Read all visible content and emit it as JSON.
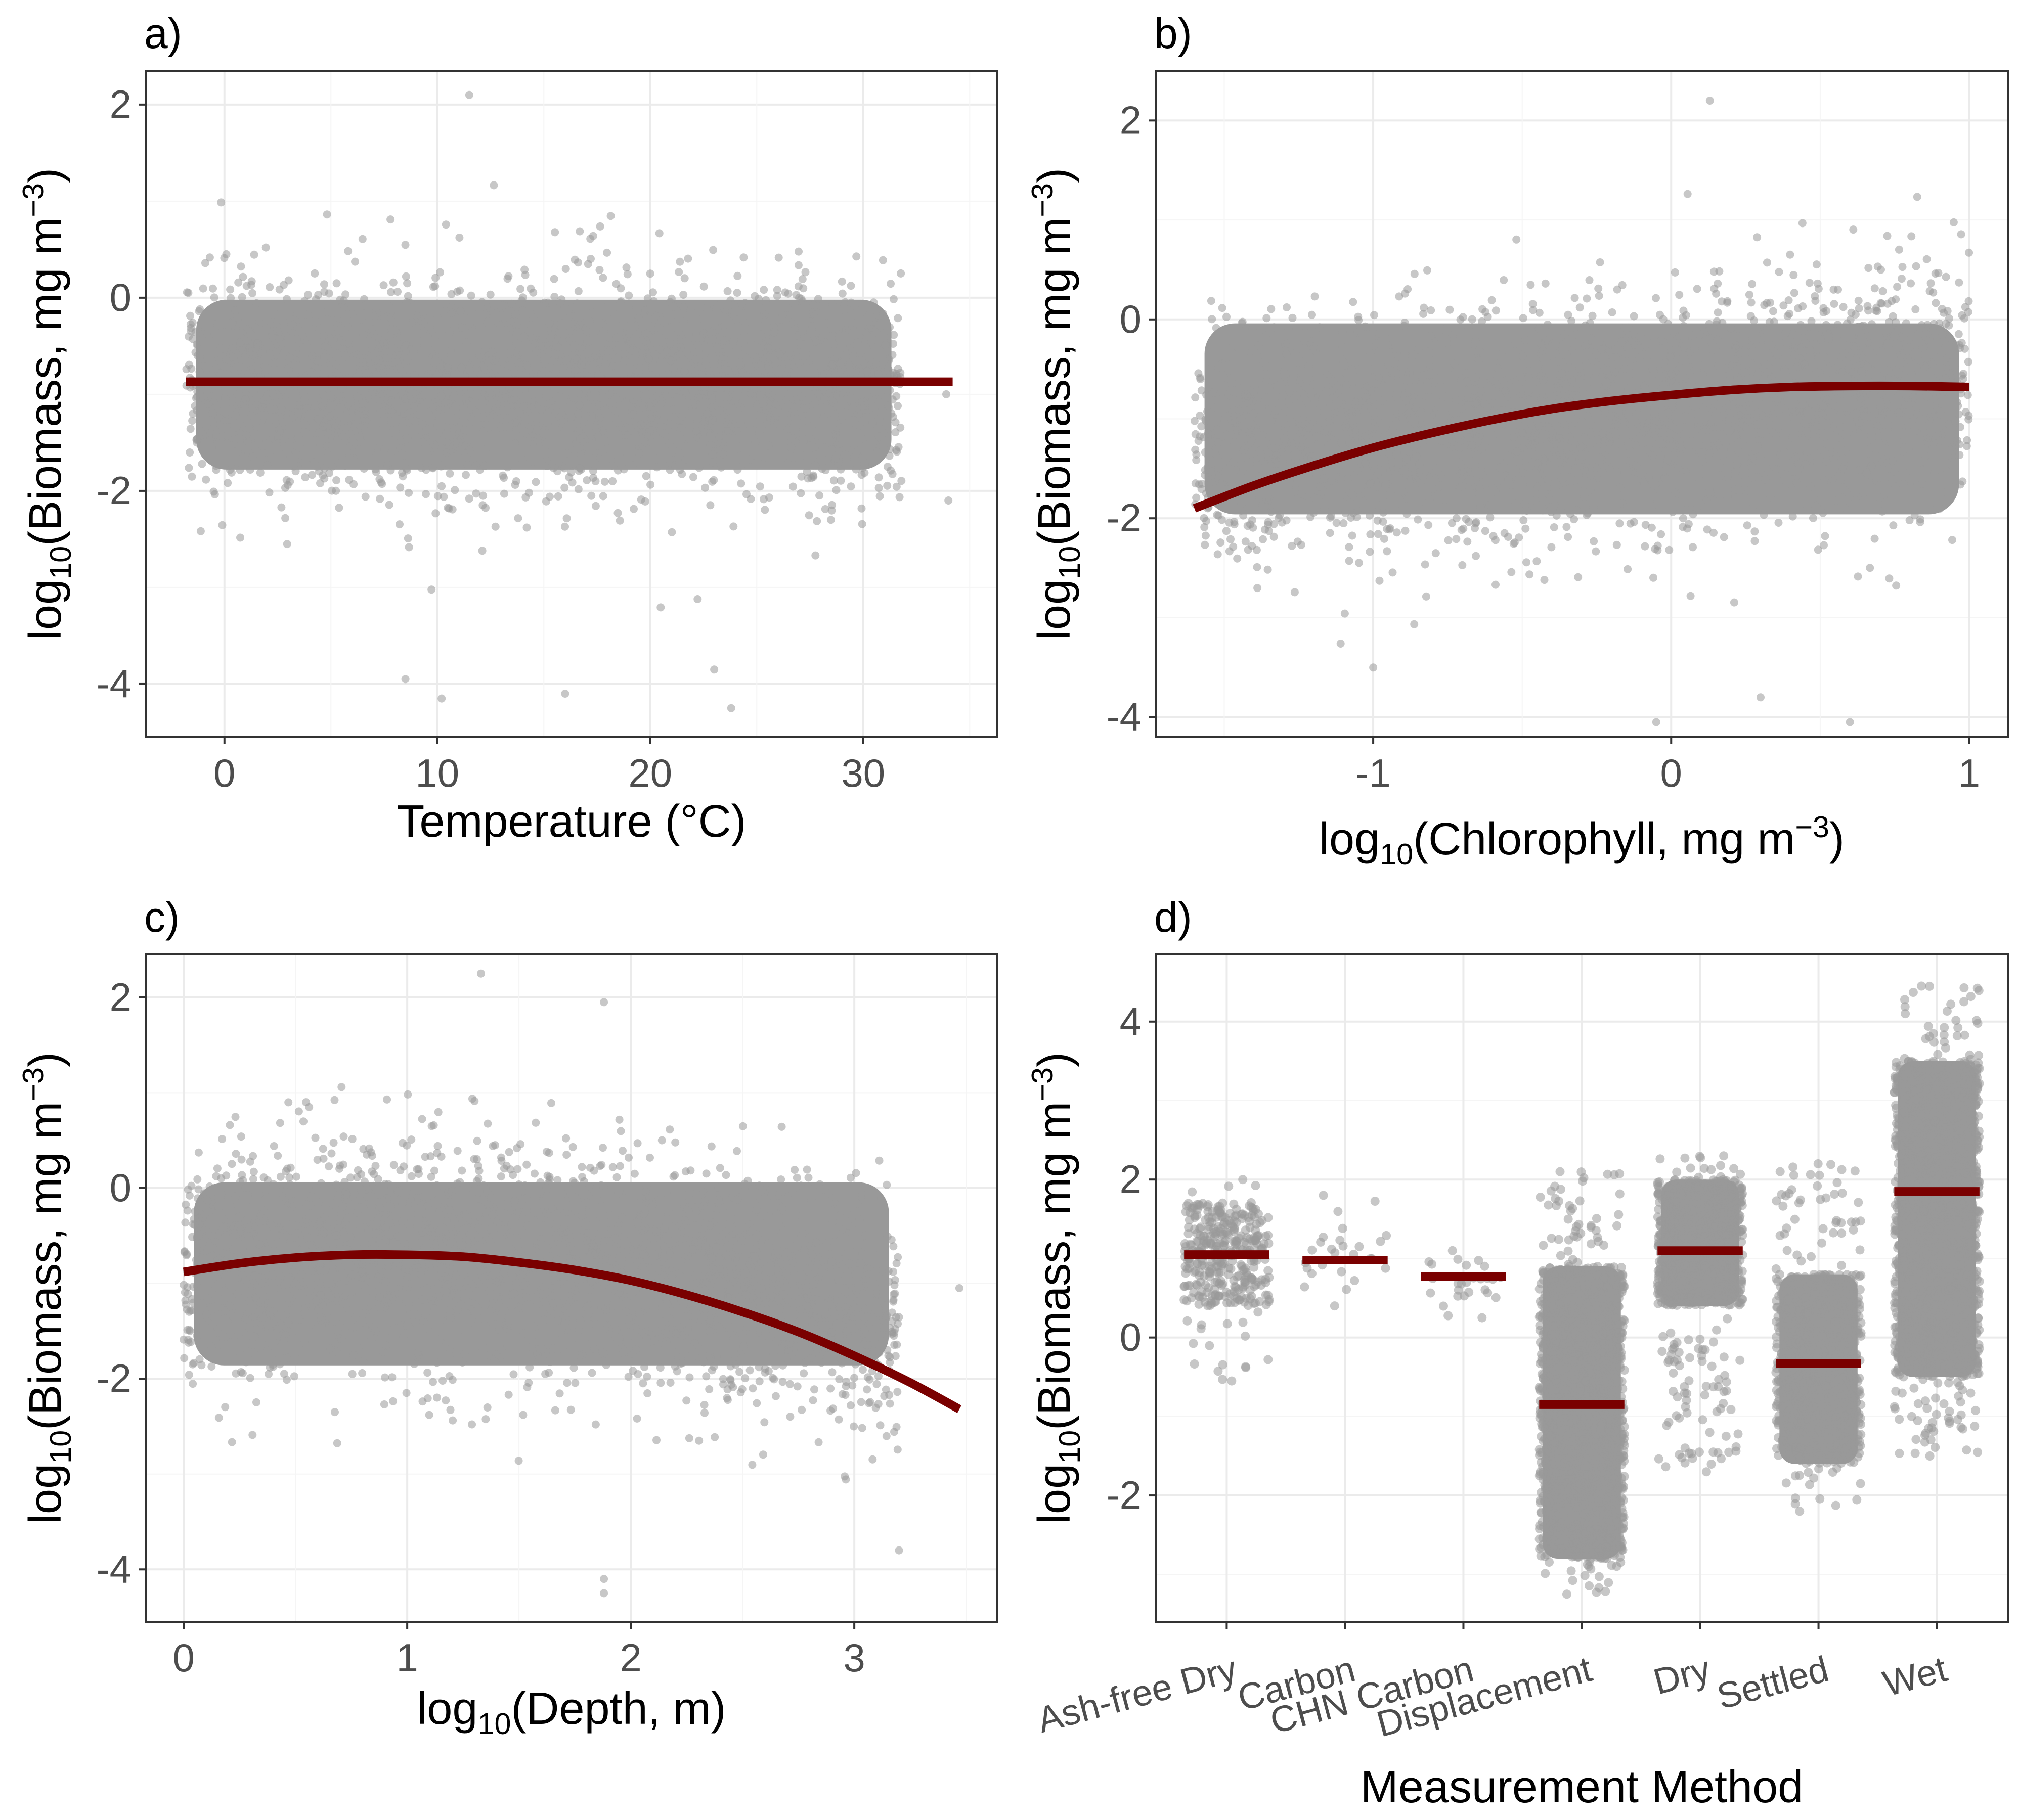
{
  "colors": {
    "points": "#999999",
    "fit": "#7a0000",
    "grid_major": "#ebebeb",
    "grid_minor": "#f5f5f5",
    "frame": "#333333",
    "tick_text": "#4d4d4d",
    "background": "#ffffff"
  },
  "chart_data": [
    {
      "panel": "a)",
      "type": "scatter",
      "xlabel": "Temperature (°C)",
      "ylabel": {
        "pre": "log",
        "sub": "10",
        "mid": "(Biomass, mg m",
        "sup": "−3",
        "post": ")"
      },
      "xlim": [
        -3.7,
        36.3
      ],
      "ylim": [
        -4.55,
        2.35
      ],
      "x_ticks": [
        0,
        10,
        20,
        30
      ],
      "x_tick_labels": [
        "0",
        "10",
        "20",
        "30"
      ],
      "y_ticks": [
        -4,
        -2,
        0,
        2
      ],
      "y_tick_labels": [
        "-4",
        "-2",
        "0",
        "2"
      ],
      "grid": true,
      "point_cloud": {
        "x_range": [
          -1.8,
          31.8
        ],
        "y_center": -0.9,
        "y_spread": 0.55,
        "density": "very high"
      },
      "outlier_points": [
        [
          11.5,
          2.1
        ],
        [
          23.8,
          -4.25
        ],
        [
          10.2,
          -4.15
        ],
        [
          16.0,
          -4.1
        ],
        [
          8.5,
          -3.95
        ],
        [
          23.0,
          -3.85
        ],
        [
          33.9,
          -1.0
        ],
        [
          34.0,
          -2.1
        ]
      ],
      "fit_line": {
        "x": [
          -1.8,
          34.2
        ],
        "y": [
          -0.87,
          -0.87
        ]
      }
    },
    {
      "panel": "b)",
      "type": "scatter",
      "xlabel": {
        "pre": "log",
        "sub": "10",
        "mid": "(Chlorophyll, mg m",
        "sup": "−3",
        "post": ")"
      },
      "ylabel": {
        "pre": "log",
        "sub": "10",
        "mid": "(Biomass, mg m",
        "sup": "−3",
        "post": ")"
      },
      "xlim": [
        -1.73,
        1.13
      ],
      "ylim": [
        -4.2,
        2.5
      ],
      "x_ticks": [
        -1,
        0,
        1
      ],
      "x_tick_labels": [
        "-1",
        "0",
        "1"
      ],
      "y_ticks": [
        -4,
        -2,
        0,
        2
      ],
      "y_tick_labels": [
        "-4",
        "-2",
        "0",
        "2"
      ],
      "grid": true,
      "point_cloud": {
        "x_range": [
          -1.6,
          1.0
        ],
        "y_center": -1.0,
        "y_spread": 0.6,
        "density": "very high"
      },
      "outlier_points": [
        [
          0.13,
          2.2
        ],
        [
          -0.05,
          -4.05
        ],
        [
          0.6,
          -4.05
        ],
        [
          -1.0,
          -3.5
        ],
        [
          0.3,
          -3.8
        ]
      ],
      "fit_line": {
        "x": [
          -1.6,
          -1.4,
          -1.2,
          -1.0,
          -0.8,
          -0.6,
          -0.4,
          -0.2,
          0.0,
          0.2,
          0.4,
          0.6,
          0.8,
          1.0
        ],
        "y": [
          -1.9,
          -1.67,
          -1.47,
          -1.29,
          -1.14,
          -1.01,
          -0.9,
          -0.82,
          -0.76,
          -0.71,
          -0.68,
          -0.67,
          -0.67,
          -0.68
        ]
      }
    },
    {
      "panel": "c)",
      "type": "scatter",
      "xlabel": {
        "pre": "log",
        "sub": "10",
        "mid": "(Depth, m)",
        "sup": "",
        "post": ""
      },
      "ylabel": {
        "pre": "log",
        "sub": "10",
        "mid": "(Biomass, mg m",
        "sup": "−3",
        "post": ")"
      },
      "xlim": [
        -0.17,
        3.64
      ],
      "ylim": [
        -4.55,
        2.45
      ],
      "x_ticks": [
        0,
        1,
        2,
        3
      ],
      "x_tick_labels": [
        "0",
        "1",
        "2",
        "3"
      ],
      "y_ticks": [
        -4,
        -2,
        0,
        2
      ],
      "y_tick_labels": [
        "-4",
        "-2",
        "0",
        "2"
      ],
      "grid": true,
      "point_cloud": {
        "x_range": [
          0.0,
          3.2
        ],
        "y_center": -0.9,
        "y_spread": 0.6,
        "density": "very high"
      },
      "outlier_points": [
        [
          1.33,
          2.25
        ],
        [
          1.88,
          1.95
        ],
        [
          1.88,
          -4.25
        ],
        [
          1.88,
          -4.1
        ],
        [
          3.47,
          -1.05
        ],
        [
          3.2,
          -3.8
        ]
      ],
      "fit_line": {
        "x": [
          0.0,
          0.25,
          0.5,
          0.75,
          1.0,
          1.25,
          1.5,
          1.75,
          2.0,
          2.25,
          2.5,
          2.75,
          3.0,
          3.25,
          3.47
        ],
        "y": [
          -0.88,
          -0.79,
          -0.73,
          -0.7,
          -0.7,
          -0.72,
          -0.78,
          -0.86,
          -0.97,
          -1.12,
          -1.3,
          -1.51,
          -1.76,
          -2.04,
          -2.32
        ]
      }
    },
    {
      "panel": "d)",
      "type": "scatter",
      "xlabel": "Measurement Method",
      "ylabel": {
        "pre": "log",
        "sub": "10",
        "mid": "(Biomass, mg m",
        "sup": "−3",
        "post": ")"
      },
      "categories": [
        "Ash-free Dry",
        "Carbon",
        "CHN Carbon",
        "Displacement",
        "Dry",
        "Settled",
        "Wet"
      ],
      "ylim": [
        -3.6,
        4.85
      ],
      "y_ticks": [
        -2,
        0,
        2,
        4
      ],
      "y_tick_labels": [
        "-2",
        "0",
        "2",
        "4"
      ],
      "grid": true,
      "category_means": [
        1.05,
        0.98,
        0.77,
        -0.85,
        1.1,
        -0.33,
        1.85
      ],
      "point_ranges": [
        {
          "category": "Ash-free Dry",
          "min": -0.55,
          "max": 2.0,
          "core_min": 0.4,
          "core_max": 1.7,
          "n": "low"
        },
        {
          "category": "Carbon",
          "min": 0.4,
          "max": 1.8,
          "core_min": 0.6,
          "core_max": 1.4,
          "n": "very low"
        },
        {
          "category": "CHN Carbon",
          "min": 0.25,
          "max": 1.1,
          "core_min": 0.5,
          "core_max": 1.0,
          "n": "very low"
        },
        {
          "category": "Displacement",
          "min": -3.25,
          "max": 2.1,
          "core_min": -2.8,
          "core_max": 0.9,
          "n": "very high"
        },
        {
          "category": "Dry",
          "min": -1.7,
          "max": 2.3,
          "core_min": 0.4,
          "core_max": 2.0,
          "n": "high"
        },
        {
          "category": "Settled",
          "min": -2.2,
          "max": 2.2,
          "core_min": -1.6,
          "core_max": 0.8,
          "n": "high"
        },
        {
          "category": "Wet",
          "min": -1.5,
          "max": 4.45,
          "core_min": -0.5,
          "core_max": 3.5,
          "n": "very high"
        }
      ]
    }
  ]
}
